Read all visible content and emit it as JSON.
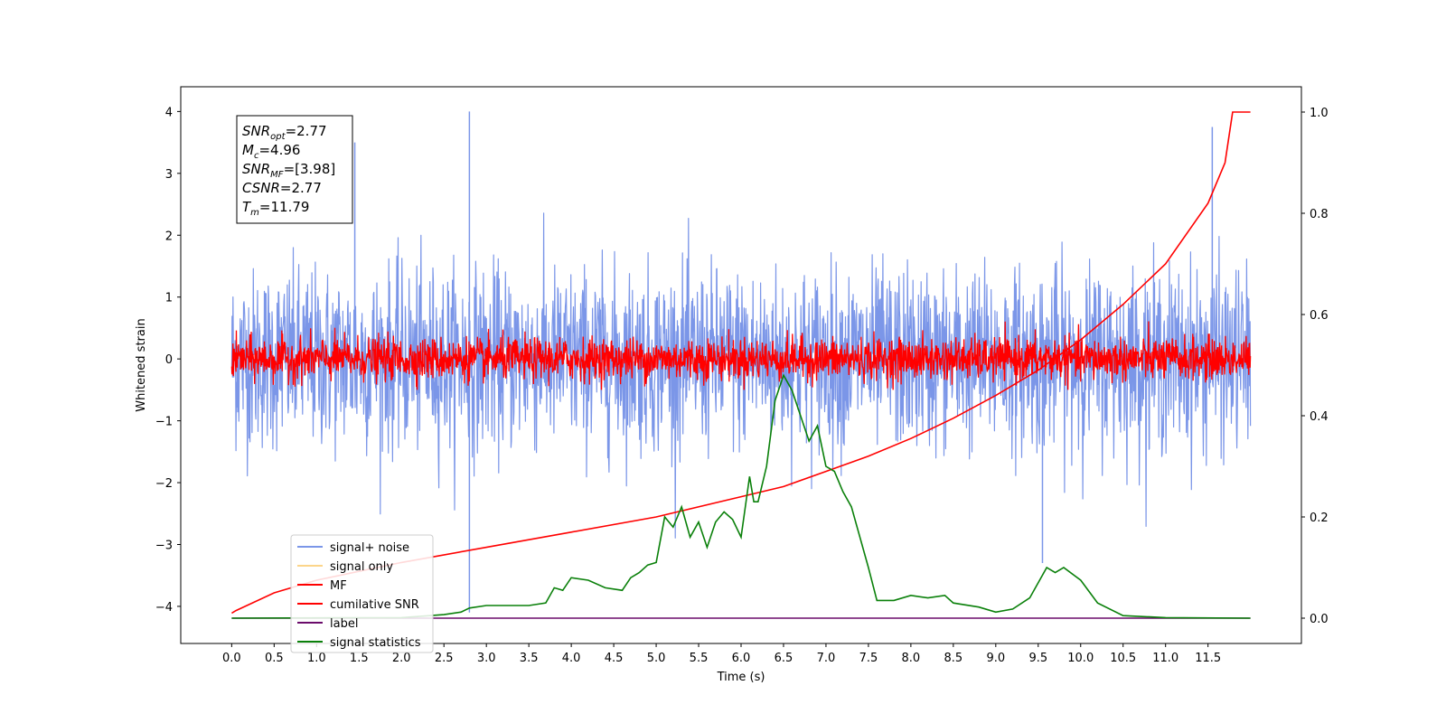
{
  "chart_data": {
    "type": "line",
    "xlabel": "Time (s)",
    "ylabel": "Whitened strain",
    "xlim": [
      -0.6,
      12.6
    ],
    "ylim_left": [
      -4.6,
      4.4
    ],
    "ylim_right": [
      -0.05,
      1.05
    ],
    "x_ticks": [
      "0.0",
      "0.5",
      "1.0",
      "1.5",
      "2.0",
      "2.5",
      "3.0",
      "3.5",
      "4.0",
      "4.5",
      "5.0",
      "5.5",
      "6.0",
      "6.5",
      "7.0",
      "7.5",
      "8.0",
      "8.5",
      "9.0",
      "9.5",
      "10.0",
      "10.5",
      "11.0",
      "11.5"
    ],
    "y_ticks_left": [
      "−4",
      "−3",
      "−2",
      "−1",
      "0",
      "1",
      "2",
      "3",
      "4"
    ],
    "y_ticks_right": [
      "0.0",
      "0.2",
      "0.4",
      "0.6",
      "0.8",
      "1.0"
    ],
    "legend_position": "lower-left",
    "legend": [
      {
        "label": "signal+ noise",
        "color": "#7b96e8"
      },
      {
        "label": "signal only",
        "color": "#fcd58a"
      },
      {
        "label": "MF",
        "color": "#ff0000"
      },
      {
        "label": "cumilative SNR",
        "color": "#ff0000"
      },
      {
        "label": "label",
        "color": "#6b0c6b"
      },
      {
        "label": "signal statistics",
        "color": "#0a800a"
      }
    ],
    "info_box": {
      "position": "top-left",
      "lines": [
        {
          "sym": "SNR",
          "sub": "opt",
          "val": "=2.77"
        },
        {
          "sym": "M",
          "sub": "c",
          "val": "=4.96"
        },
        {
          "sym": "SNR",
          "sub": "MF",
          "val": "=[3.98]"
        },
        {
          "sym": "CSNR",
          "sub": "",
          "val": "=2.77"
        },
        {
          "sym": "T",
          "sub": "m",
          "val": "=11.79"
        }
      ]
    },
    "series": [
      {
        "name": "signal+ noise",
        "axis": "left",
        "description_amp": "noise std ~0.75, range -3.3..4.0",
        "t_end": 12.0
      },
      {
        "name": "MF",
        "axis": "left",
        "description_amp": "noise std ~0.15, range -0.5..1.0",
        "t_end": 12.0
      },
      {
        "name": "cumilative SNR",
        "axis": "right",
        "x": [
          0.0,
          0.05,
          0.5,
          1.0,
          2.0,
          3.0,
          4.0,
          5.0,
          6.0,
          6.5,
          7.0,
          7.5,
          8.0,
          8.5,
          9.0,
          9.5,
          10.0,
          10.5,
          11.0,
          11.5,
          11.7,
          11.79,
          12.0
        ],
        "y": [
          0.01,
          0.015,
          0.05,
          0.075,
          0.11,
          0.14,
          0.17,
          0.2,
          0.24,
          0.26,
          0.29,
          0.32,
          0.355,
          0.395,
          0.44,
          0.49,
          0.55,
          0.62,
          0.7,
          0.82,
          0.9,
          1.0,
          1.0
        ]
      },
      {
        "name": "label",
        "axis": "right",
        "x": [
          0.0,
          12.0
        ],
        "y": [
          0.0,
          0.0
        ]
      },
      {
        "name": "signal statistics",
        "axis": "right",
        "x": [
          0.0,
          2.0,
          2.5,
          2.7,
          2.8,
          3.0,
          3.5,
          3.7,
          3.8,
          3.9,
          4.0,
          4.2,
          4.4,
          4.6,
          4.7,
          4.8,
          4.9,
          5.0,
          5.1,
          5.2,
          5.3,
          5.4,
          5.5,
          5.6,
          5.7,
          5.8,
          5.9,
          6.0,
          6.1,
          6.15,
          6.2,
          6.3,
          6.4,
          6.5,
          6.6,
          6.7,
          6.8,
          6.9,
          7.0,
          7.1,
          7.2,
          7.3,
          7.5,
          7.6,
          7.8,
          8.0,
          8.2,
          8.4,
          8.5,
          8.8,
          9.0,
          9.2,
          9.4,
          9.6,
          9.7,
          9.8,
          10.0,
          10.2,
          10.5,
          11.0,
          12.0
        ],
        "y": [
          0.0,
          0.001,
          0.007,
          0.012,
          0.02,
          0.025,
          0.025,
          0.03,
          0.06,
          0.055,
          0.08,
          0.075,
          0.06,
          0.055,
          0.08,
          0.09,
          0.105,
          0.11,
          0.2,
          0.18,
          0.22,
          0.16,
          0.19,
          0.14,
          0.19,
          0.21,
          0.195,
          0.16,
          0.28,
          0.23,
          0.23,
          0.3,
          0.43,
          0.48,
          0.45,
          0.4,
          0.35,
          0.38,
          0.3,
          0.29,
          0.25,
          0.22,
          0.1,
          0.035,
          0.035,
          0.045,
          0.04,
          0.045,
          0.03,
          0.022,
          0.012,
          0.018,
          0.04,
          0.1,
          0.09,
          0.1,
          0.075,
          0.03,
          0.005,
          0.001,
          0.0
        ]
      }
    ]
  }
}
